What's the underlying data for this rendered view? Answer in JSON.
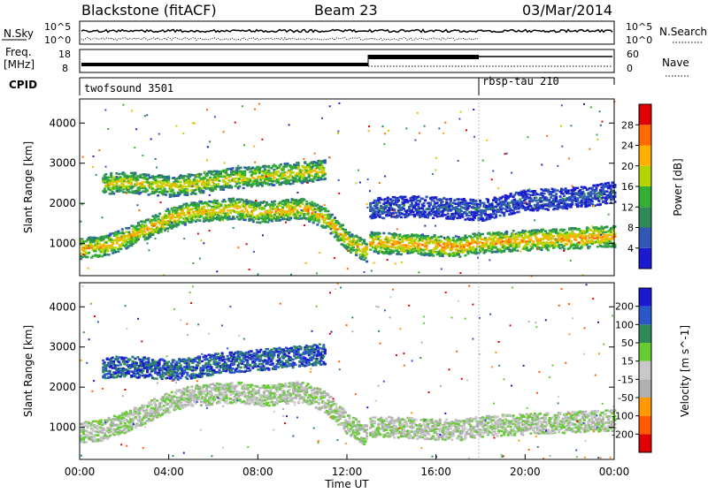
{
  "header": {
    "title": "Blackstone (fitACF)",
    "beam": "Beam 23",
    "date": "03/Mar/2014"
  },
  "noise_panel": {
    "left_label": "N.Sky",
    "right_label": "N.Search",
    "left_ticks": [
      "10^5",
      "10^0"
    ],
    "right_ticks": [
      "10^5",
      "10^0"
    ]
  },
  "freq_panel": {
    "left_label_1": "Freq.",
    "left_label_2": "[MHz]",
    "right_label": "Nave",
    "left_ticks": [
      "18",
      "8"
    ],
    "right_ticks": [
      "60",
      "0"
    ]
  },
  "cpid_panel": {
    "label": "CPID",
    "programs": [
      {
        "name": "twofsound 3501",
        "start_hour": 0
      },
      {
        "name": "rbsp-tau 210",
        "start_hour": 18
      }
    ]
  },
  "colors": {
    "power": [
      "#1a1ad0",
      "#2f57b8",
      "#2e8b57",
      "#33b033",
      "#b8d400",
      "#ffb000",
      "#ff6a00",
      "#e00000"
    ],
    "velocity": [
      "#e00000",
      "#ff5a00",
      "#ff9a00",
      "#b0b0b0",
      "#c8c8c8",
      "#66cc33",
      "#2e8b57",
      "#2a58c8",
      "#1a1ad0"
    ]
  },
  "chart_data": [
    {
      "type": "heatmap",
      "panel": "power",
      "ylabel": "Slant Range [km]",
      "yticks": [
        "4000",
        "3000",
        "2000",
        "1000"
      ],
      "ylim": [
        200,
        4600
      ],
      "xlim": [
        0,
        24
      ],
      "colorbar_label": "Power [dB]",
      "colorbar_ticks": [
        "28",
        "24",
        "20",
        "16",
        "12",
        "8",
        "4"
      ],
      "bands": [
        {
          "hours": [
            1,
            2,
            3,
            4,
            5,
            6,
            7,
            8,
            9,
            10,
            11
          ],
          "ranges": [
            2500,
            2550,
            2500,
            2450,
            2500,
            2600,
            2650,
            2700,
            2750,
            2800,
            2850
          ],
          "power": 20
        },
        {
          "hours": [
            0,
            1,
            2,
            3,
            4,
            5,
            6,
            7,
            8,
            9,
            10,
            11,
            12,
            12.9
          ],
          "ranges": [
            900,
            950,
            1150,
            1400,
            1650,
            1800,
            1850,
            1900,
            1800,
            1850,
            1900,
            1650,
            1100,
            800
          ],
          "power": 22
        },
        {
          "hours": [
            13,
            15,
            17,
            18,
            20,
            22,
            24
          ],
          "ranges": [
            1050,
            1000,
            950,
            1050,
            1100,
            1150,
            1200
          ],
          "power": 24
        },
        {
          "hours": [
            13,
            15,
            18,
            20,
            22,
            24
          ],
          "ranges": [
            1900,
            1950,
            1850,
            2100,
            2150,
            2300
          ],
          "power": 6
        }
      ]
    },
    {
      "type": "heatmap",
      "panel": "velocity",
      "xlabel": "Time UT",
      "ylabel": "Slant Range [km]",
      "yticks": [
        "4000",
        "3000",
        "2000",
        "1000"
      ],
      "xticks": [
        "00:00",
        "04:00",
        "08:00",
        "12:00",
        "16:00",
        "20:00",
        "00:00"
      ],
      "ylim": [
        200,
        4600
      ],
      "xlim": [
        0,
        24
      ],
      "colorbar_label": "Velocity [m s^-1]",
      "colorbar_ticks": [
        "200",
        "100",
        "50",
        "15",
        "-15",
        "-50",
        "-100",
        "-200"
      ],
      "bands": [
        {
          "hours": [
            1,
            2,
            3,
            4,
            5,
            6,
            7,
            8,
            9,
            10,
            11
          ],
          "ranges": [
            2500,
            2550,
            2500,
            2450,
            2500,
            2600,
            2650,
            2700,
            2750,
            2800,
            2850
          ],
          "velocity": 150
        },
        {
          "hours": [
            0,
            1,
            2,
            3,
            4,
            5,
            6,
            7,
            8,
            9,
            10,
            11,
            12,
            12.9
          ],
          "ranges": [
            900,
            950,
            1150,
            1400,
            1650,
            1800,
            1850,
            1900,
            1800,
            1850,
            1900,
            1650,
            1100,
            800
          ],
          "velocity": 0
        },
        {
          "hours": [
            13,
            15,
            17,
            18,
            20,
            22,
            24
          ],
          "ranges": [
            1050,
            1000,
            950,
            1050,
            1100,
            1150,
            1200
          ],
          "velocity": 0
        }
      ]
    }
  ]
}
